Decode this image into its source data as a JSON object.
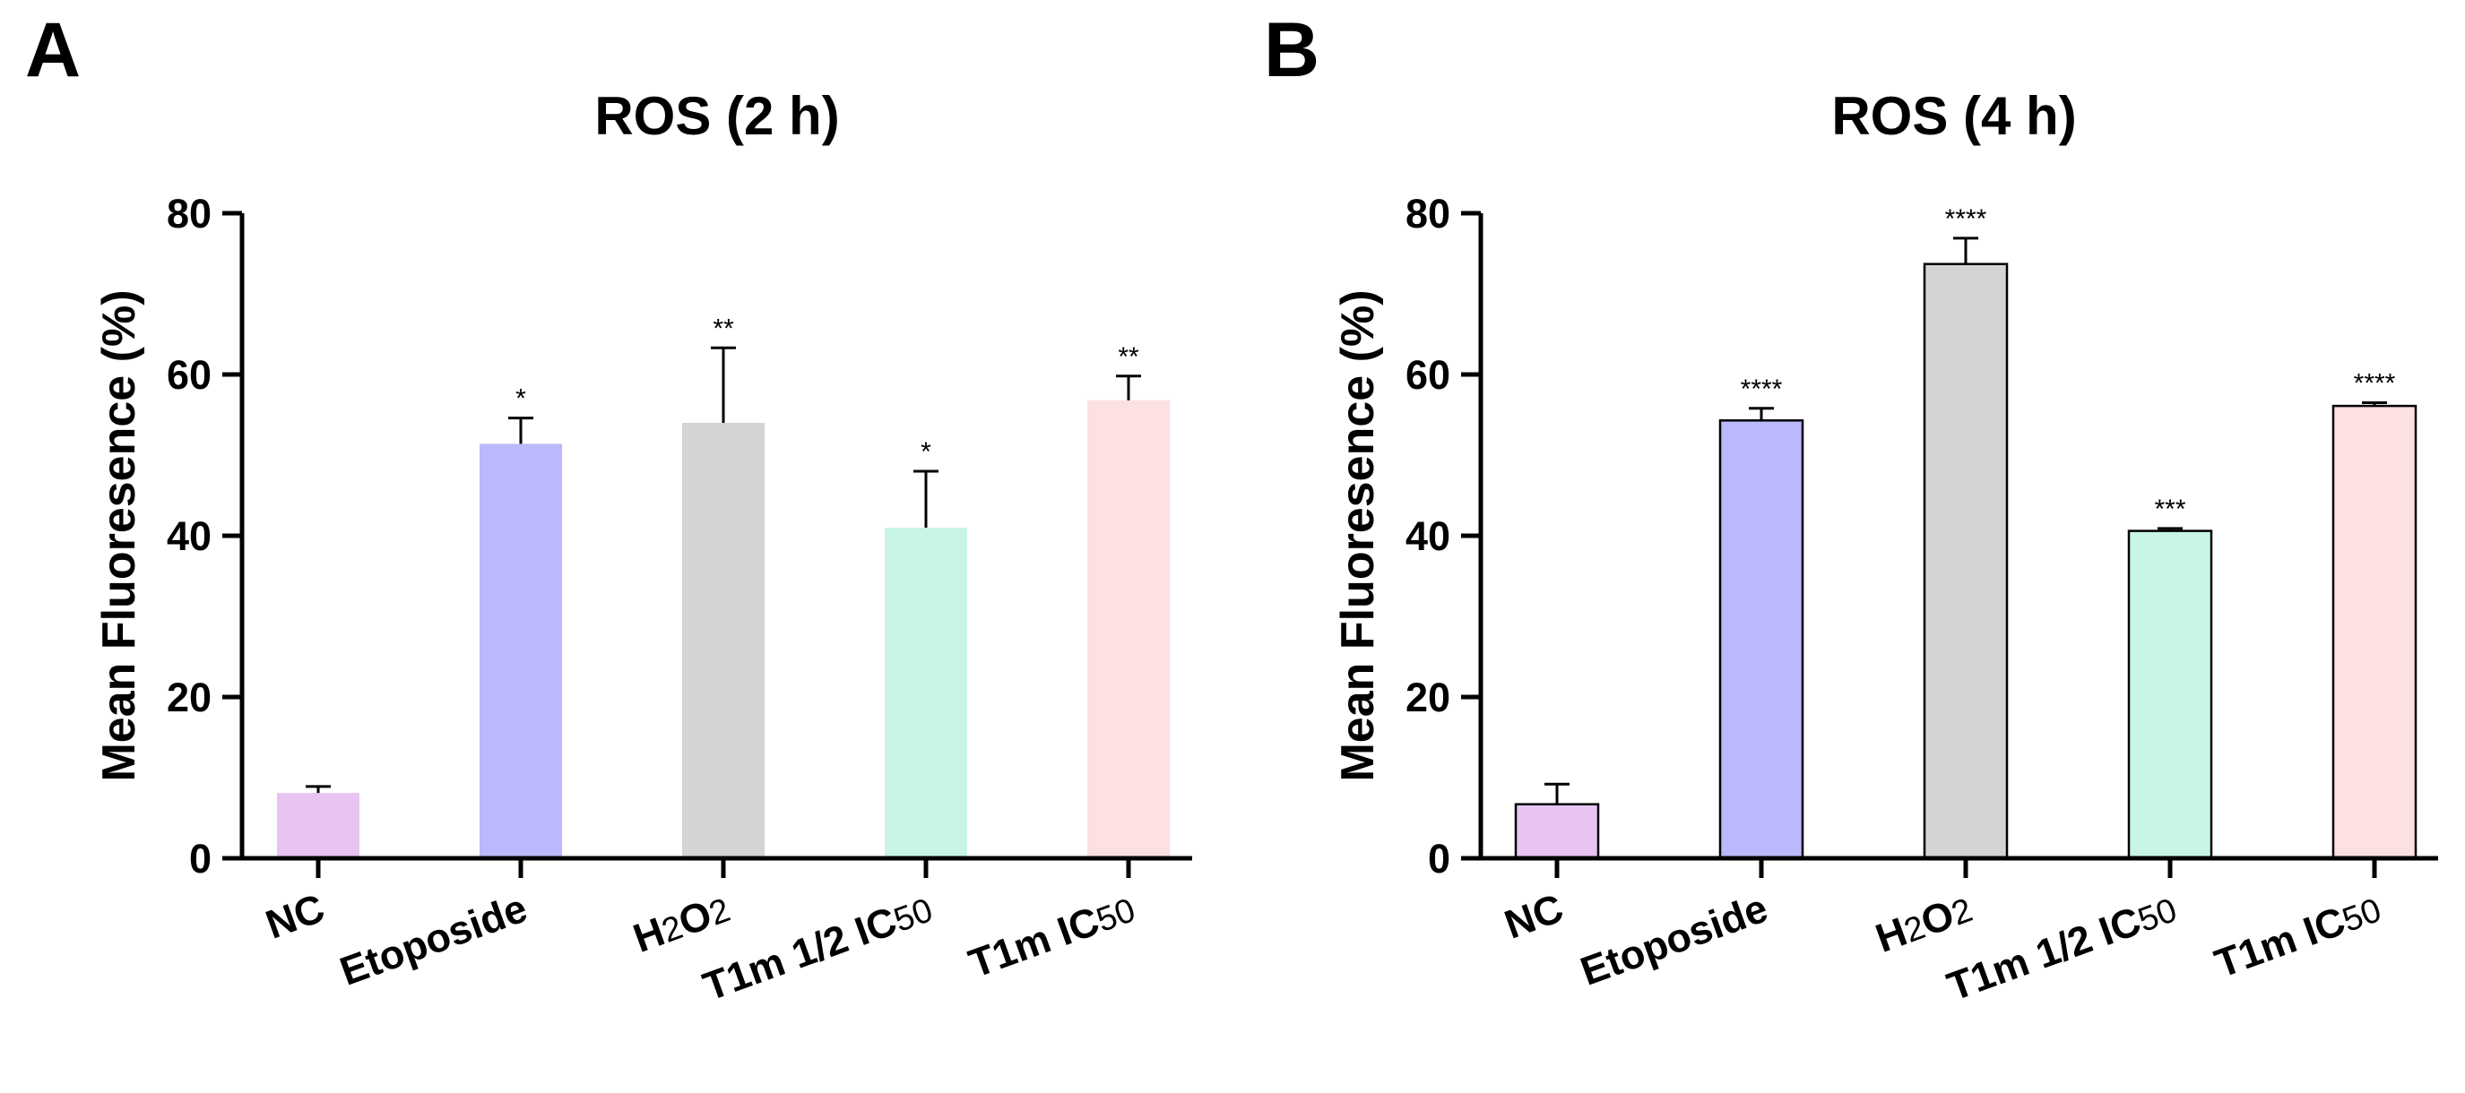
{
  "panels": [
    {
      "letter": "A"
    },
    {
      "letter": "B"
    }
  ],
  "chart_data": [
    {
      "type": "bar",
      "title": "ROS (2 h)",
      "xlabel": "",
      "ylabel": "Mean Fluoresence (%)",
      "ylim": [
        0,
        80
      ],
      "yticks": [
        0,
        20,
        40,
        60,
        80
      ],
      "grid": false,
      "bar_outline": false,
      "categories": [
        {
          "label": "NC"
        },
        {
          "label": "Etoposide"
        },
        {
          "label": "H",
          "sub": "2",
          "label2": "O",
          "sub2": "2"
        },
        {
          "label": "T1m 1/2 IC",
          "sub": "50"
        },
        {
          "label": "T1m IC",
          "sub": "50"
        }
      ],
      "values": [
        8.1,
        51.4,
        54.0,
        41.0,
        56.8
      ],
      "errors": [
        0.8,
        3.2,
        9.3,
        7.0,
        3.0
      ],
      "significance": [
        "",
        "*",
        "**",
        "*",
        "**"
      ],
      "colors": [
        "#e8c4f2",
        "#b9b9fb",
        "#d4d4d4",
        "#c8f5e4",
        "#fde0e2"
      ]
    },
    {
      "type": "bar",
      "title": "ROS (4 h)",
      "xlabel": "",
      "ylabel": "Mean Fluoresence (%)",
      "ylim": [
        0,
        80
      ],
      "yticks": [
        0,
        20,
        40,
        60,
        80
      ],
      "grid": false,
      "bar_outline": true,
      "categories": [
        {
          "label": "NC"
        },
        {
          "label": "Etoposide"
        },
        {
          "label": "H",
          "sub": "2",
          "label2": "O",
          "sub2": "2"
        },
        {
          "label": "T1m 1/2 IC",
          "sub": "50"
        },
        {
          "label": "T1m IC",
          "sub": "50"
        }
      ],
      "values": [
        6.7,
        54.3,
        73.7,
        40.6,
        56.1
      ],
      "errors": [
        2.5,
        1.5,
        3.2,
        0.3,
        0.4
      ],
      "significance": [
        "",
        "****",
        "****",
        "***",
        "****"
      ],
      "colors": [
        "#e8c4f2",
        "#b9b9fb",
        "#d4d4d4",
        "#c8f5e4",
        "#fde0e2"
      ]
    }
  ]
}
